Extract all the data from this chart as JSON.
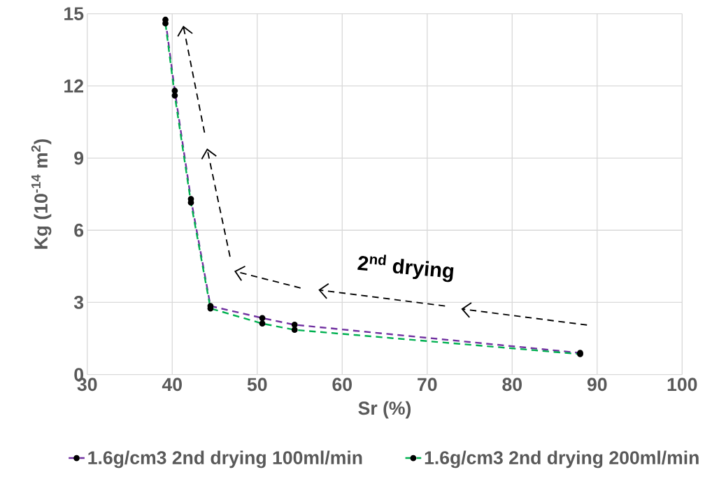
{
  "chart_data": {
    "type": "line",
    "xlabel": "Sr (%)",
    "ylabel": "Kg (10$^{-14}$ m$^{2}$)",
    "x": [
      39.2,
      40.3,
      42.2,
      44.5,
      50.6,
      54.4,
      88
    ],
    "series": [
      {
        "name": "1.6g/cm3 2nd drying 100ml/min",
        "color": "#7030a0",
        "values": [
          14.75,
          11.8,
          7.3,
          2.85,
          2.35,
          2.07,
          0.9
        ]
      },
      {
        "name": "1.6g/cm3 2nd drying 200ml/min",
        "color": "#00b050",
        "values": [
          14.6,
          11.6,
          7.15,
          2.75,
          2.12,
          1.86,
          0.85
        ]
      }
    ],
    "xlim": [
      30,
      100
    ],
    "xticks": [
      30,
      40,
      50,
      60,
      70,
      80,
      90,
      100
    ],
    "ylim": [
      0,
      15
    ],
    "yticks": [
      0,
      3,
      6,
      9,
      12,
      15
    ],
    "grid": true,
    "legend": "bottom",
    "marker": "circle",
    "line_style": "dashed",
    "annotations": [
      "2$^{nd}$ drying"
    ]
  }
}
